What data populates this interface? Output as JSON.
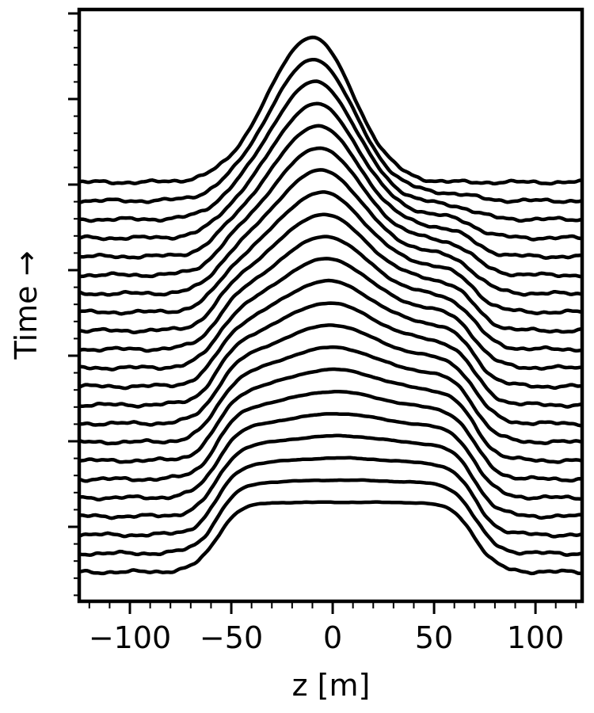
{
  "chart_data": {
    "type": "line",
    "title": "",
    "xlabel": "z [m]",
    "ylabel": "Time →",
    "xlim": [
      -125,
      123
    ],
    "xticks": [
      -100,
      -50,
      0,
      50,
      100
    ],
    "xtick_labels": [
      "−100",
      "−50",
      "0",
      "50",
      "100"
    ],
    "y_tick_labels_shown": false,
    "grid": false,
    "legend": "none",
    "line_color": "#000000",
    "trace_count": 22,
    "profile_start": {
      "peak_z": 5,
      "flat_top": [
        -20,
        35
      ],
      "edges": [
        -65,
        80
      ]
    },
    "profile_end": {
      "peak_z": -10,
      "steep_side_z": 15,
      "base_edges": [
        -55,
        45
      ]
    }
  }
}
